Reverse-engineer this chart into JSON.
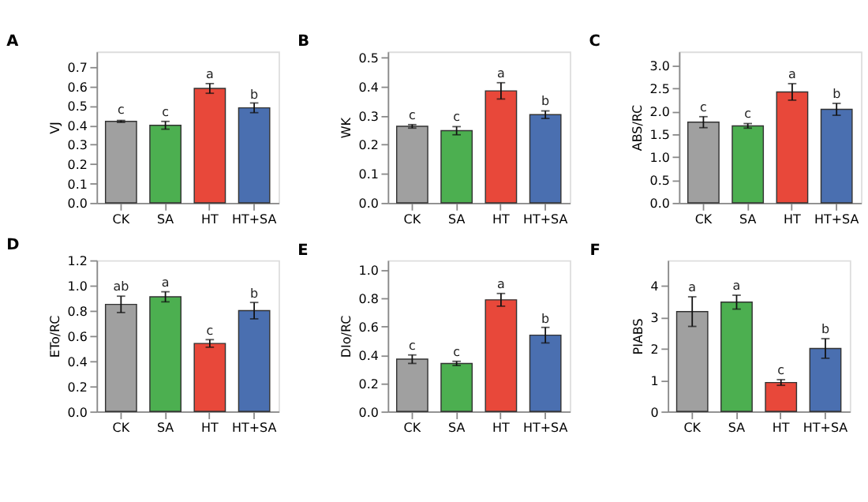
{
  "chart_data": [
    {
      "type": "bar",
      "title": "A",
      "ylabel": "VJ",
      "categories": [
        "CK",
        "SA",
        "HT",
        "HT+SA"
      ],
      "values": [
        0.42,
        0.4,
        0.59,
        0.49
      ],
      "errors": [
        0.005,
        0.02,
        0.025,
        0.025
      ],
      "colors": [
        "#a0a0a0",
        "#4caf50",
        "#e8483a",
        "#4a6fb0"
      ],
      "ylim": [
        0,
        0.78
      ],
      "yticks": [
        {
          "value": 0,
          "label": "0.0"
        },
        0.1,
        0.2,
        0.3,
        0.4,
        0.5,
        0.6,
        0.7
      ],
      "grid": false,
      "annotations": [
        {
          "text": "c",
          "x": "CK",
          "y": 0.43
        },
        {
          "text": "c",
          "x": "SA",
          "y": 0.42
        },
        {
          "text": "a",
          "x": "HT",
          "y": 0.615
        },
        {
          "text": "b",
          "x": "HT+SA",
          "y": 0.51
        }
      ]
    },
    {
      "type": "bar",
      "title": "B",
      "ylabel": "WK",
      "categories": [
        "CK",
        "SA",
        "HT",
        "HT+SA"
      ],
      "values": [
        0.263,
        0.248,
        0.385,
        0.303
      ],
      "errors": [
        0.006,
        0.014,
        0.028,
        0.013
      ],
      "colors": [
        "#a0a0a0",
        "#4caf50",
        "#e8483a",
        "#4a6fb0"
      ],
      "ylim": [
        0,
        0.52
      ],
      "yticks": [
        {
          "value": 0,
          "label": "0.0"
        },
        0.1,
        0.2,
        0.3,
        0.4,
        0.5
      ],
      "grid": false,
      "annotations": [
        {
          "text": "c",
          "x": "CK",
          "y": 0.269
        },
        {
          "text": "c",
          "x": "SA",
          "y": 0.262
        },
        {
          "text": "a",
          "x": "HT",
          "y": 0.413
        },
        {
          "text": "b",
          "x": "HT+SA",
          "y": 0.316
        }
      ]
    },
    {
      "type": "bar",
      "title": "C",
      "ylabel": "ABS/RC",
      "categories": [
        "CK",
        "SA",
        "HT",
        "HT+SA"
      ],
      "values": [
        1.76,
        1.68,
        2.42,
        2.04
      ],
      "errors": [
        0.12,
        0.05,
        0.18,
        0.13
      ],
      "colors": [
        "#a0a0a0",
        "#4caf50",
        "#e8483a",
        "#4a6fb0"
      ],
      "ylim": [
        0,
        3.3
      ],
      "yticks": [
        {
          "value": 0,
          "label": "0.0"
        },
        0.5,
        {
          "value": 1,
          "label": "1.0"
        },
        1.5,
        {
          "value": 2,
          "label": "2.0"
        },
        2.5,
        {
          "value": 3,
          "label": "3.0"
        }
      ],
      "grid": false,
      "annotations": [
        {
          "text": "c",
          "x": "CK",
          "y": 1.88
        },
        {
          "text": "c",
          "x": "SA",
          "y": 1.73
        },
        {
          "text": "a",
          "x": "HT",
          "y": 2.6
        },
        {
          "text": "b",
          "x": "HT+SA",
          "y": 2.17
        }
      ]
    },
    {
      "type": "bar",
      "title": "D",
      "ylabel": "ETo/RC",
      "categories": [
        "CK",
        "SA",
        "HT",
        "HT+SA"
      ],
      "values": [
        0.85,
        0.91,
        0.54,
        0.8
      ],
      "errors": [
        0.065,
        0.04,
        0.03,
        0.065
      ],
      "colors": [
        "#a0a0a0",
        "#4caf50",
        "#e8483a",
        "#4a6fb0"
      ],
      "ylim": [
        0,
        1.2
      ],
      "yticks": [
        {
          "value": 0,
          "label": "0.0"
        },
        0.2,
        0.4,
        0.6,
        0.8,
        {
          "value": 1,
          "label": "1.0"
        },
        1.2
      ],
      "grid": false,
      "annotations": [
        {
          "text": "ab",
          "x": "CK",
          "y": 0.915
        },
        {
          "text": "a",
          "x": "SA",
          "y": 0.945
        },
        {
          "text": "c",
          "x": "HT",
          "y": 0.565
        },
        {
          "text": "b",
          "x": "HT+SA",
          "y": 0.86
        }
      ]
    },
    {
      "type": "bar",
      "title": "E",
      "ylabel": "DIo/RC",
      "categories": [
        "CK",
        "SA",
        "HT",
        "HT+SA"
      ],
      "values": [
        0.37,
        0.34,
        0.79,
        0.54
      ],
      "errors": [
        0.03,
        0.015,
        0.045,
        0.055
      ],
      "colors": [
        "#a0a0a0",
        "#4caf50",
        "#e8483a",
        "#4a6fb0"
      ],
      "ylim": [
        0,
        1.07
      ],
      "yticks": [
        {
          "value": 0,
          "label": "0.0"
        },
        0.2,
        0.4,
        0.6,
        0.8,
        {
          "value": 1,
          "label": "1.0"
        }
      ],
      "grid": false,
      "annotations": [
        {
          "text": "c",
          "x": "CK",
          "y": 0.395
        },
        {
          "text": "c",
          "x": "SA",
          "y": 0.355
        },
        {
          "text": "a",
          "x": "HT",
          "y": 0.835
        },
        {
          "text": "b",
          "x": "HT+SA",
          "y": 0.59
        }
      ]
    },
    {
      "type": "bar",
      "title": "F",
      "ylabel": "PIABS",
      "categories": [
        "CK",
        "SA",
        "HT",
        "HT+SA"
      ],
      "values": [
        3.17,
        3.47,
        0.92,
        2.0
      ],
      "errors": [
        0.47,
        0.22,
        0.09,
        0.31
      ],
      "colors": [
        "#a0a0a0",
        "#4caf50",
        "#e8483a",
        "#4a6fb0"
      ],
      "ylim": [
        0,
        4.8
      ],
      "yticks": [
        0,
        1,
        2,
        3,
        4
      ],
      "grid": false,
      "annotations": [
        {
          "text": "a",
          "x": "CK",
          "y": 3.64
        },
        {
          "text": "a",
          "x": "SA",
          "y": 3.69
        },
        {
          "text": "c",
          "x": "HT",
          "y": 1.01
        },
        {
          "text": "b",
          "x": "HT+SA",
          "y": 2.31
        }
      ]
    }
  ]
}
